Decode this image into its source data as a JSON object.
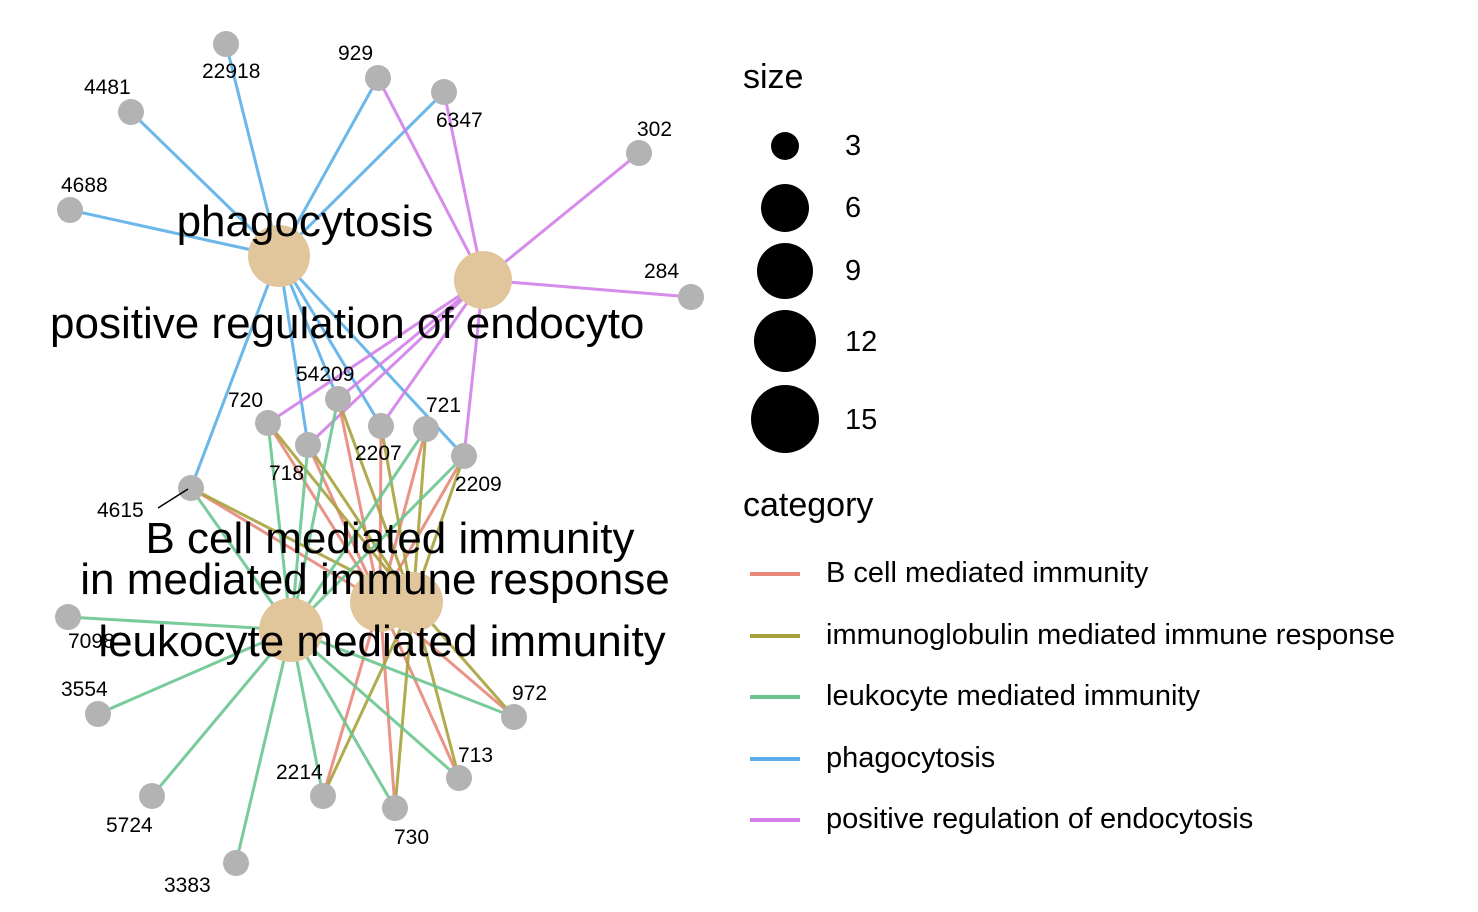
{
  "categories": [
    {
      "id": "bcell",
      "label": "B cell mediated immunity",
      "color": "#E8877A"
    },
    {
      "id": "immuno",
      "label": "immunoglobulin mediated immune response",
      "color": "#A8A23C"
    },
    {
      "id": "leuko",
      "label": "leukocyte mediated immunity",
      "color": "#6CC58F"
    },
    {
      "id": "phago",
      "label": "phagocytosis",
      "color": "#5BAFE8"
    },
    {
      "id": "endo",
      "label": "positive regulation of endocytosis",
      "color": "#D27FE8"
    }
  ],
  "category_node_color": "#E2C69B",
  "gene_node_color": "#B3B3B3",
  "genes": [
    "22918",
    "929",
    "4481",
    "6347",
    "302",
    "4688",
    "284",
    "54209",
    "720",
    "721",
    "2207",
    "718",
    "2209",
    "4615",
    "7098",
    "3554",
    "972",
    "713",
    "2214",
    "5724",
    "730",
    "3383"
  ],
  "network_labels": {
    "phago": "phagocytosis",
    "endo": "positive regulation of endocyto",
    "bcell": "B cell mediated immunity",
    "immuno": "in mediated immune response",
    "leuko": "leukocyte mediated immunity",
    "gene_7098_overlap": "7098"
  },
  "edges": [
    [
      "phago",
      "22918"
    ],
    [
      "phago",
      "929"
    ],
    [
      "phago",
      "4481"
    ],
    [
      "phago",
      "6347"
    ],
    [
      "phago",
      "4688"
    ],
    [
      "phago",
      "54209"
    ],
    [
      "phago",
      "718"
    ],
    [
      "phago",
      "2207"
    ],
    [
      "phago",
      "2209"
    ],
    [
      "phago",
      "4615"
    ],
    [
      "endo",
      "929"
    ],
    [
      "endo",
      "6347"
    ],
    [
      "endo",
      "302"
    ],
    [
      "endo",
      "284"
    ],
    [
      "endo",
      "720"
    ],
    [
      "endo",
      "718"
    ],
    [
      "endo",
      "2207"
    ],
    [
      "endo",
      "2209"
    ],
    [
      "endo",
      "54209"
    ],
    [
      "bcell",
      "720"
    ],
    [
      "bcell",
      "54209"
    ],
    [
      "bcell",
      "721"
    ],
    [
      "bcell",
      "2207"
    ],
    [
      "bcell",
      "718"
    ],
    [
      "bcell",
      "2209"
    ],
    [
      "bcell",
      "4615"
    ],
    [
      "bcell",
      "972"
    ],
    [
      "bcell",
      "2214"
    ],
    [
      "bcell",
      "730"
    ],
    [
      "bcell",
      "713"
    ],
    [
      "immuno",
      "720"
    ],
    [
      "immuno",
      "54209"
    ],
    [
      "immuno",
      "721"
    ],
    [
      "immuno",
      "2207"
    ],
    [
      "immuno",
      "718"
    ],
    [
      "immuno",
      "2209"
    ],
    [
      "immuno",
      "4615"
    ],
    [
      "immuno",
      "972"
    ],
    [
      "immuno",
      "713"
    ],
    [
      "immuno",
      "730"
    ],
    [
      "immuno",
      "2214"
    ],
    [
      "leuko",
      "54209"
    ],
    [
      "leuko",
      "720"
    ],
    [
      "leuko",
      "721"
    ],
    [
      "leuko",
      "718"
    ],
    [
      "leuko",
      "2209"
    ],
    [
      "leuko",
      "4615"
    ],
    [
      "leuko",
      "7098"
    ],
    [
      "leuko",
      "3554"
    ],
    [
      "leuko",
      "5724"
    ],
    [
      "leuko",
      "3383"
    ],
    [
      "leuko",
      "2214"
    ],
    [
      "leuko",
      "713"
    ],
    [
      "leuko",
      "972"
    ],
    [
      "leuko",
      "730"
    ]
  ],
  "legend": {
    "size_title": "size",
    "size_values": [
      "3",
      "6",
      "9",
      "12",
      "15"
    ],
    "category_title": "category"
  }
}
